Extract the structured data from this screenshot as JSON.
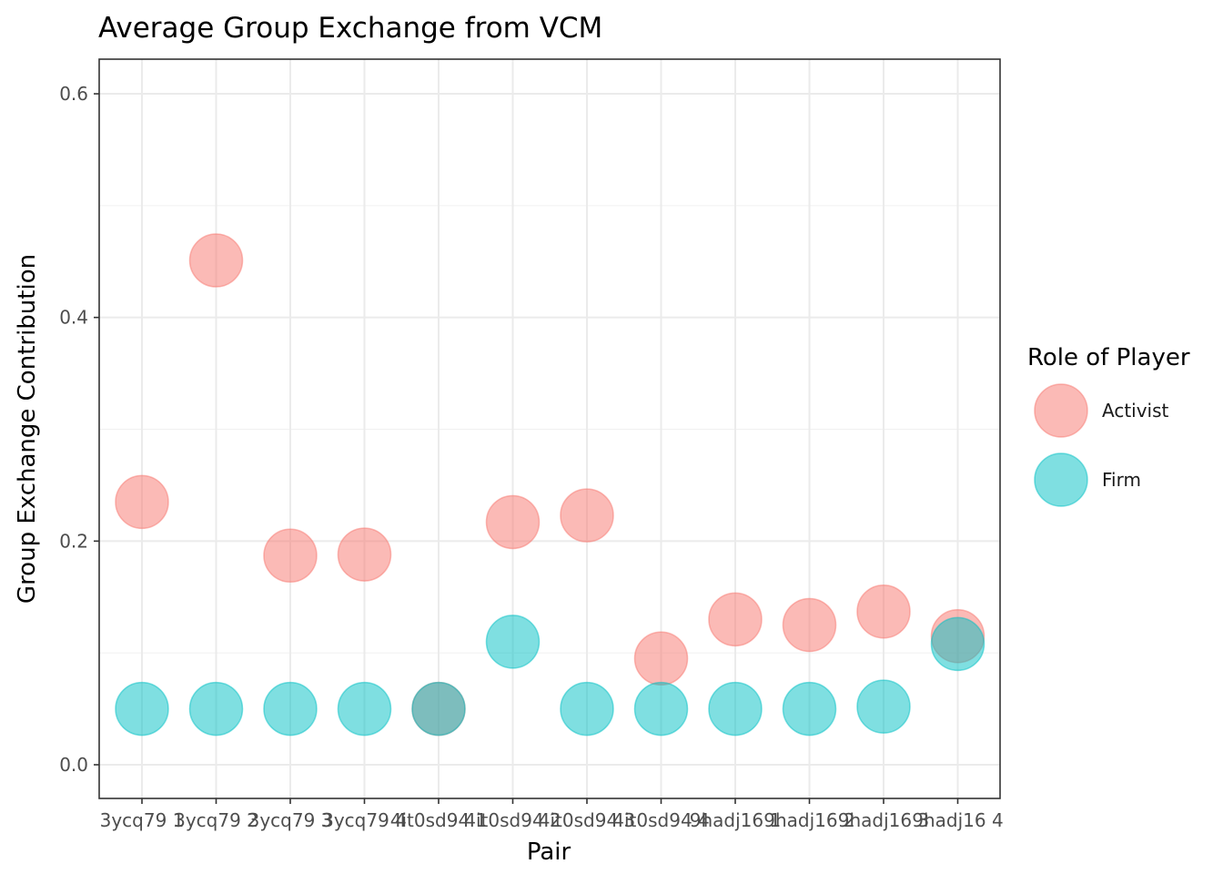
{
  "chart_data": {
    "type": "scatter",
    "title": "Average Group Exchange from VCM",
    "xlabel": "Pair",
    "ylabel": "Group Exchange Contribution",
    "categories": [
      "3ycq79 1",
      "3ycq79 2",
      "3ycq79 3",
      "3ycq79 4",
      "4it0sd94 1",
      "4it0sd94 2",
      "4it0sd94 3",
      "4it0sd94 4",
      "9hadj16 1",
      "9hadj16 2",
      "9hadj16 3",
      "9hadj16 4"
    ],
    "ylim": [
      -0.03,
      0.63
    ],
    "yticks": [
      0.0,
      0.2,
      0.4,
      0.6
    ],
    "ytick_labels": [
      "0.0",
      "0.2",
      "0.4",
      "0.6"
    ],
    "grid": true,
    "legend": {
      "title": "Role of Player",
      "placement": "right"
    },
    "series": [
      {
        "name": "Activist",
        "color": "#F8766D",
        "values": [
          0.235,
          0.451,
          0.187,
          0.188,
          0.05,
          0.217,
          0.223,
          0.095,
          0.13,
          0.125,
          0.137,
          0.115
        ]
      },
      {
        "name": "Firm",
        "color": "#00BFC4",
        "values": [
          0.05,
          0.05,
          0.05,
          0.05,
          0.05,
          0.11,
          0.05,
          0.05,
          0.05,
          0.05,
          0.052,
          0.108
        ]
      }
    ]
  }
}
